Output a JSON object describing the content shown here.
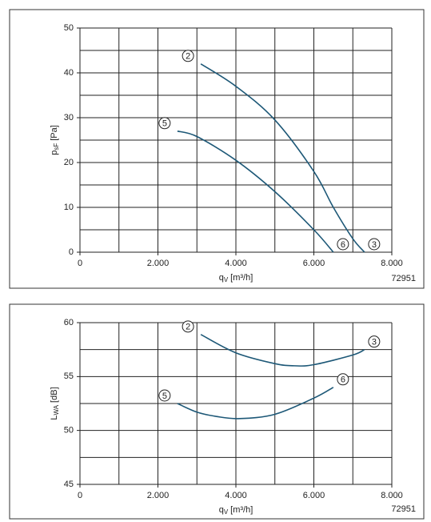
{
  "chart_data": [
    {
      "type": "line",
      "ylabel": {
        "main": "p",
        "sub": "sF",
        "unit": "[Pa]"
      },
      "xlabel": {
        "main": "q",
        "sub": "V",
        "unit": "[m³/h]"
      },
      "code": "72951",
      "xlim": [
        0,
        8000
      ],
      "xticks": [
        0,
        {
          "value": 2000,
          "label": "2.000"
        },
        {
          "value": 4000,
          "label": "4.000"
        },
        {
          "value": 6000,
          "label": "6.000"
        },
        {
          "value": 8000,
          "label": "8.000"
        }
      ],
      "xminor": [
        1000,
        3000,
        5000,
        7000
      ],
      "ylim": [
        0,
        50
      ],
      "yticks": [
        0,
        10,
        20,
        30,
        40,
        50
      ],
      "yminor": [
        5,
        15,
        25,
        35,
        45
      ],
      "grid": true,
      "series": [
        {
          "start_label": "2",
          "end_label": "3",
          "color": "#1d5877",
          "x": [
            3100,
            4000,
            5000,
            6000,
            6500,
            7000,
            7300
          ],
          "values": [
            42,
            37,
            29.5,
            18,
            10,
            3,
            0
          ]
        },
        {
          "start_label": "5",
          "end_label": "6",
          "color": "#1d5877",
          "x": [
            2500,
            3000,
            4000,
            5000,
            6000,
            6500
          ],
          "values": [
            27,
            25.8,
            20.5,
            13.5,
            5,
            0
          ]
        }
      ]
    },
    {
      "type": "line",
      "ylabel": {
        "main": "L",
        "sub": "WA",
        "unit": "[dB]"
      },
      "xlabel": {
        "main": "q",
        "sub": "V",
        "unit": "[m³/h]"
      },
      "code": "72951",
      "xlim": [
        0,
        8000
      ],
      "xticks": [
        0,
        {
          "value": 2000,
          "label": "2.000"
        },
        {
          "value": 4000,
          "label": "4.000"
        },
        {
          "value": 6000,
          "label": "6.000"
        },
        {
          "value": 8000,
          "label": "8.000"
        }
      ],
      "xminor": [
        1000,
        3000,
        5000,
        7000
      ],
      "ylim": [
        45,
        60
      ],
      "yticks": [
        45,
        50,
        55,
        60
      ],
      "yminor": [
        47.5,
        52.5,
        57.5
      ],
      "grid": true,
      "series": [
        {
          "start_label": "2",
          "end_label": "3",
          "color": "#1d5877",
          "x": [
            3100,
            4000,
            5000,
            5500,
            6000,
            7000,
            7300
          ],
          "values": [
            58.9,
            57.2,
            56.2,
            56.0,
            56.1,
            57.0,
            57.5
          ]
        },
        {
          "start_label": "5",
          "end_label": "6",
          "color": "#1d5877",
          "x": [
            2500,
            3000,
            3500,
            4100,
            5000,
            6000,
            6500
          ],
          "values": [
            52.5,
            51.7,
            51.3,
            51.1,
            51.5,
            53.0,
            54.0
          ]
        }
      ]
    }
  ]
}
